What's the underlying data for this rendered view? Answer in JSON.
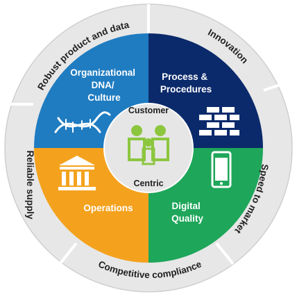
{
  "ring": {
    "top_left": "Robust product and data",
    "top_right": "Innovation",
    "right": "Speed to market",
    "bottom": "Competitive compliance",
    "left": "Reliable supply"
  },
  "quadrants": {
    "top_left": {
      "lines": [
        "Organizational",
        "DNA/",
        "Culture"
      ],
      "icon": "dna-icon"
    },
    "top_right": {
      "lines": [
        "Process &",
        "Procedures"
      ],
      "icon": "brick-wall-icon"
    },
    "bottom_left": {
      "lines": [
        "Operations"
      ],
      "icon": "bank-building-icon"
    },
    "bottom_right": {
      "lines": [
        "Digital",
        "Quality"
      ],
      "icon": "smartphone-icon"
    }
  },
  "center": {
    "top": "Customer",
    "bottom": "Centric",
    "icon": "family-icon"
  },
  "colors": {
    "ring": "#e7e7e7",
    "ring_border": "#cfcfcf",
    "top_left": "#1f7cc1",
    "top_right": "#0b2a6b",
    "bottom_left": "#f4a21e",
    "bottom_right": "#1ea65a",
    "center": "#e6e6e6",
    "family": "#8cc63f"
  }
}
